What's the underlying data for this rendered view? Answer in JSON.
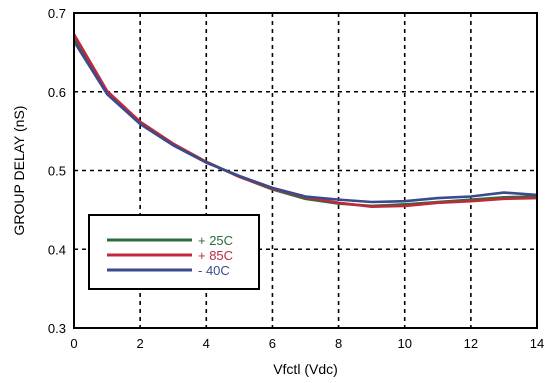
{
  "chart_data": {
    "type": "line",
    "title": "",
    "xlabel": "Vfctl (Vdc)",
    "ylabel": "GROUP DELAY (nS)",
    "xlim": [
      0,
      14
    ],
    "ylim": [
      0.3,
      0.7
    ],
    "xticks": [
      0,
      2,
      4,
      6,
      8,
      10,
      12,
      14
    ],
    "yticks": [
      0.3,
      0.4,
      0.5,
      0.6,
      0.7
    ],
    "xtick_labels": [
      "0",
      "2",
      "4",
      "6",
      "8",
      "10",
      "12",
      "14"
    ],
    "ytick_labels": [
      "0.3",
      "0.4",
      "0.5",
      "0.6",
      "0.7"
    ],
    "grid": true,
    "grid_style": "dashed",
    "legend_position": "lower-left",
    "series": [
      {
        "name": "+ 25C",
        "color": "#2e6b3a",
        "x": [
          0,
          1,
          2,
          3,
          4,
          5,
          6,
          7,
          8,
          9,
          10,
          11,
          12,
          13,
          14
        ],
        "y": [
          0.668,
          0.6,
          0.561,
          0.534,
          0.511,
          0.492,
          0.476,
          0.464,
          0.458,
          0.455,
          0.457,
          0.46,
          0.463,
          0.466,
          0.467
        ]
      },
      {
        "name": "+ 85C",
        "color": "#c0283c",
        "x": [
          0,
          1,
          2,
          3,
          4,
          5,
          6,
          7,
          8,
          9,
          10,
          11,
          12,
          13,
          14
        ],
        "y": [
          0.673,
          0.601,
          0.562,
          0.534,
          0.511,
          0.492,
          0.477,
          0.466,
          0.459,
          0.454,
          0.455,
          0.459,
          0.461,
          0.464,
          0.465
        ]
      },
      {
        "name": "- 40C",
        "color": "#3a4a8c",
        "x": [
          0,
          1,
          2,
          3,
          4,
          5,
          6,
          7,
          8,
          9,
          10,
          11,
          12,
          13,
          14
        ],
        "y": [
          0.664,
          0.597,
          0.559,
          0.532,
          0.51,
          0.493,
          0.478,
          0.467,
          0.463,
          0.46,
          0.461,
          0.465,
          0.467,
          0.472,
          0.469
        ]
      }
    ]
  }
}
